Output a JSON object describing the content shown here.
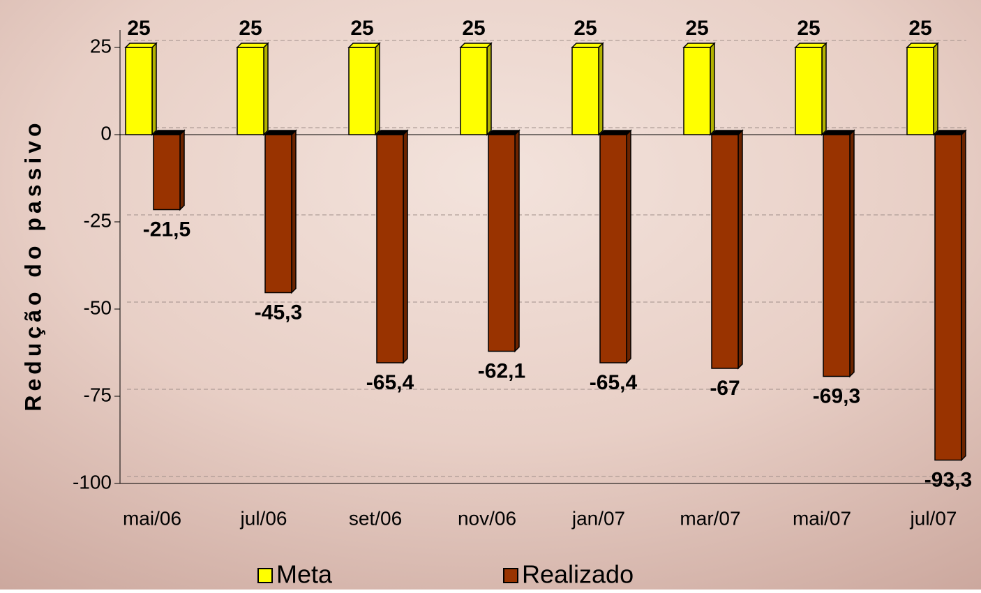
{
  "chart_data": {
    "type": "bar",
    "y_label": "Redução do passivo",
    "categories": [
      "mai/06",
      "jul/06",
      "set/06",
      "nov/06",
      "jan/07",
      "mar/07",
      "mai/07",
      "jul/07"
    ],
    "series": [
      {
        "name": "Meta",
        "color": "#ffff00",
        "values": [
          25,
          25,
          25,
          25,
          25,
          25,
          25,
          25
        ]
      },
      {
        "name": "Realizado",
        "color": "#993300",
        "values": [
          -21.5,
          -45.3,
          -65.4,
          -62.1,
          -65.4,
          -67,
          -69.3,
          -93.3
        ],
        "value_labels": [
          "-21,5",
          "-45,3",
          "-65,4",
          "-62,1",
          "-65,4",
          "-67",
          "-69,3",
          "-93,3"
        ]
      }
    ],
    "ylim": [
      -100,
      30
    ],
    "yticks": [
      25,
      0,
      -25,
      -50,
      -75,
      -100
    ],
    "grid": true,
    "legend": "bottom"
  }
}
